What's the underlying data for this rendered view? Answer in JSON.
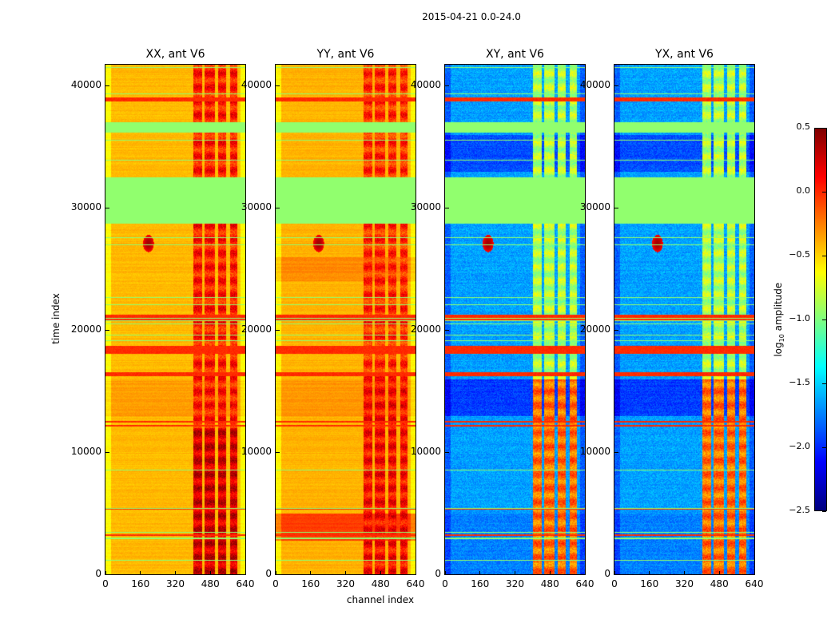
{
  "chart_data": {
    "type": "heatmap",
    "title": "2015-04-21 0.0-24.0",
    "xlabel": "channel index",
    "ylabel": "time index",
    "xlim": [
      0,
      640
    ],
    "ylim": [
      0,
      41700
    ],
    "xticks": [
      "0",
      "160",
      "320",
      "480",
      "640"
    ],
    "xtick_values": [
      0,
      160,
      320,
      480,
      640
    ],
    "yticks": [
      "0",
      "10000",
      "20000",
      "30000",
      "40000"
    ],
    "ytick_values": [
      0,
      10000,
      20000,
      30000,
      40000
    ],
    "colormap": "jet",
    "colorbar": {
      "label": "log10 amplitude",
      "label_main": "log",
      "label_sub": "10",
      "label_rest": " amplitude",
      "range": [
        -2.5,
        0.5
      ],
      "ticks": [
        "0.5",
        "0.0",
        "−0.5",
        "−1.0",
        "−1.5",
        "−2.0",
        "−2.5"
      ],
      "tick_values": [
        0.5,
        0.0,
        -0.5,
        -1.0,
        -1.5,
        -2.0,
        -2.5
      ]
    },
    "flagged_value": -0.95,
    "flagged_time_ranges": [
      [
        28700,
        32500
      ],
      [
        36200,
        37000
      ]
    ],
    "strong_time_ranges": [
      [
        38750,
        39050
      ],
      [
        20850,
        21300
      ],
      [
        18050,
        18700
      ],
      [
        16250,
        16600
      ],
      [
        12420,
        12600
      ],
      [
        12100,
        12250
      ],
      [
        5300,
        5420
      ],
      [
        3200,
        3280
      ]
    ],
    "channel_feature_bands": [
      [
        400,
        440
      ],
      [
        450,
        500
      ],
      [
        515,
        550
      ],
      [
        570,
        600
      ]
    ],
    "panels": [
      {
        "title": "XX, ant V6",
        "pol": "XX",
        "base": -0.42,
        "feature_low": 0.25,
        "feature_high": 0.05,
        "feature_split": 12000
      },
      {
        "title": "YY, ant V6",
        "pol": "YY",
        "base": -0.4,
        "feature_low": 0.1,
        "feature_high": 0.0,
        "feature_split": 16000
      },
      {
        "title": "XY, ant V6",
        "pol": "XY",
        "base": -1.65,
        "feature_low": -0.2,
        "feature_high": -0.85,
        "feature_split": 16000
      },
      {
        "title": "YX, ant V6",
        "pol": "YX",
        "base": -1.65,
        "feature_low": -0.2,
        "feature_high": -0.85,
        "feature_split": 16000
      }
    ]
  }
}
